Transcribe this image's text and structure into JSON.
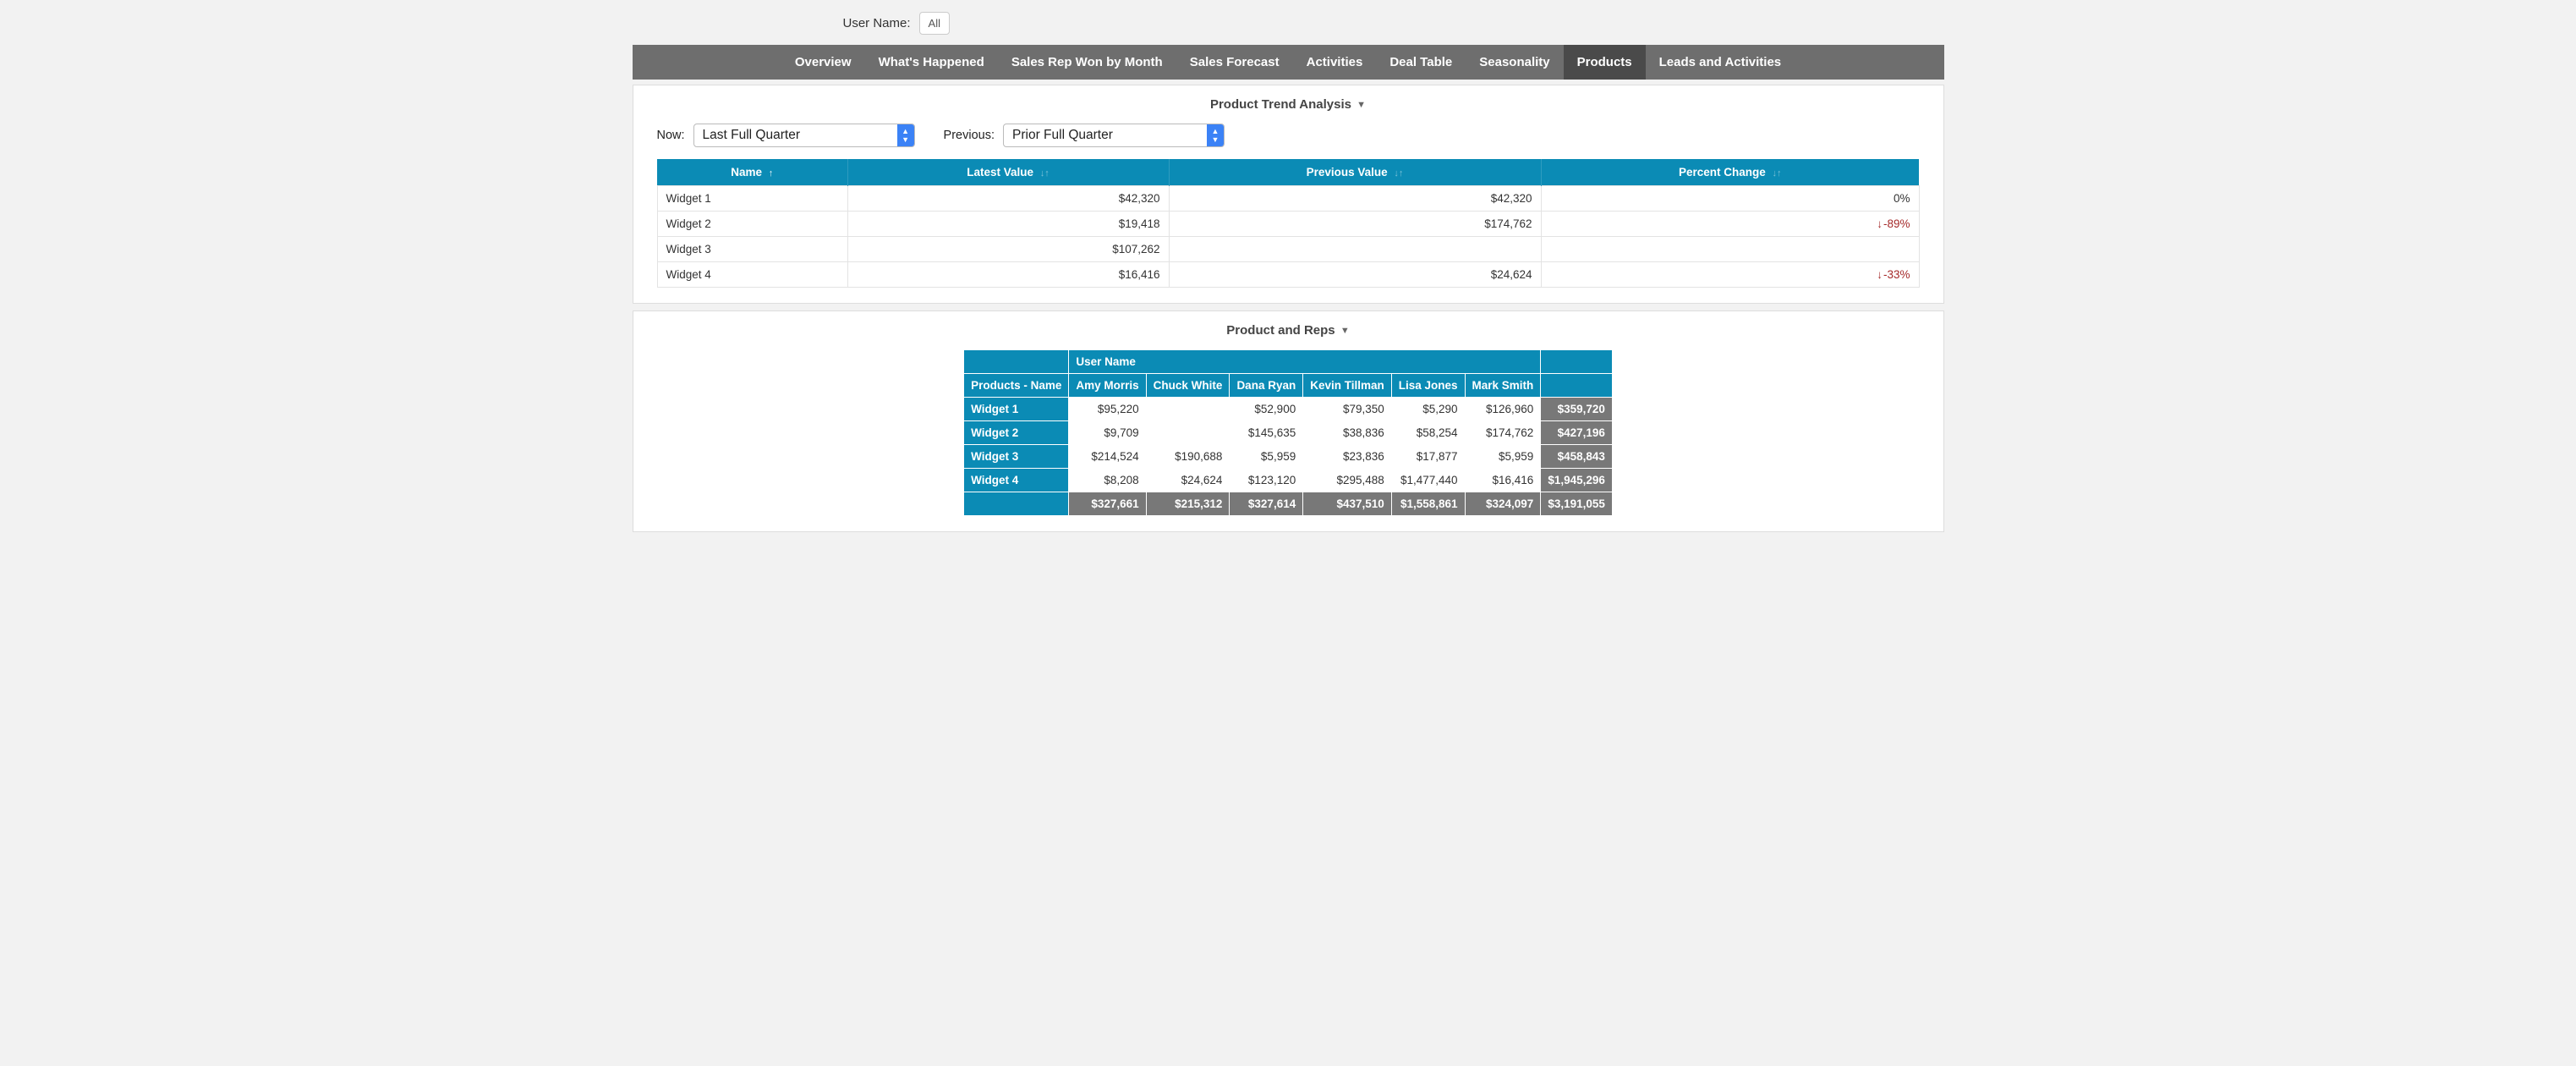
{
  "filter": {
    "label": "User Name:",
    "value": "All"
  },
  "nav": {
    "tabs": [
      {
        "label": "Overview",
        "active": false
      },
      {
        "label": "What's Happened",
        "active": false
      },
      {
        "label": "Sales Rep Won by Month",
        "active": false
      },
      {
        "label": "Sales Forecast",
        "active": false
      },
      {
        "label": "Activities",
        "active": false
      },
      {
        "label": "Deal Table",
        "active": false
      },
      {
        "label": "Seasonality",
        "active": false
      },
      {
        "label": "Products",
        "active": true
      },
      {
        "label": "Leads and Activities",
        "active": false
      }
    ]
  },
  "trend_panel": {
    "title": "Product Trend Analysis",
    "now_label": "Now:",
    "now_value": "Last Full Quarter",
    "prev_label": "Previous:",
    "prev_value": "Prior Full Quarter",
    "columns": [
      "Name",
      "Latest Value",
      "Previous Value",
      "Percent Change"
    ],
    "rows": [
      {
        "name": "Widget 1",
        "latest": "$42,320",
        "previous": "$42,320",
        "change": "0%",
        "neg": false
      },
      {
        "name": "Widget 2",
        "latest": "$19,418",
        "previous": "$174,762",
        "change": "-89%",
        "neg": true
      },
      {
        "name": "Widget 3",
        "latest": "$107,262",
        "previous": "",
        "change": "",
        "neg": false
      },
      {
        "name": "Widget 4",
        "latest": "$16,416",
        "previous": "$24,624",
        "change": "-33%",
        "neg": true
      }
    ]
  },
  "pivot_panel": {
    "title": "Product and Reps",
    "super_header": "User Name",
    "row_header": "Products - Name",
    "col_headers": [
      "Amy Morris",
      "Chuck White",
      "Dana Ryan",
      "Kevin Tillman",
      "Lisa Jones",
      "Mark Smith"
    ],
    "rows": [
      {
        "name": "Widget 1",
        "vals": [
          "$95,220",
          "",
          "$52,900",
          "$79,350",
          "$5,290",
          "$126,960"
        ],
        "total": "$359,720"
      },
      {
        "name": "Widget 2",
        "vals": [
          "$9,709",
          "",
          "$145,635",
          "$38,836",
          "$58,254",
          "$174,762"
        ],
        "total": "$427,196"
      },
      {
        "name": "Widget 3",
        "vals": [
          "$214,524",
          "$190,688",
          "$5,959",
          "$23,836",
          "$17,877",
          "$5,959"
        ],
        "total": "$458,843"
      },
      {
        "name": "Widget 4",
        "vals": [
          "$8,208",
          "$24,624",
          "$123,120",
          "$295,488",
          "$1,477,440",
          "$16,416"
        ],
        "total": "$1,945,296"
      }
    ],
    "col_totals": [
      "$327,661",
      "$215,312",
      "$327,614",
      "$437,510",
      "$1,558,861",
      "$324,097"
    ],
    "grand_total": "$3,191,055"
  },
  "colors": {
    "nav_bg": "#6e6e6e",
    "nav_active": "#4a4a4a",
    "table_header": "#0b8bb5",
    "total_bg": "#787878",
    "page_bg": "#f2f2f2",
    "neg_text": "#a52a2a",
    "dropdown_btn": "#3b82f6"
  }
}
